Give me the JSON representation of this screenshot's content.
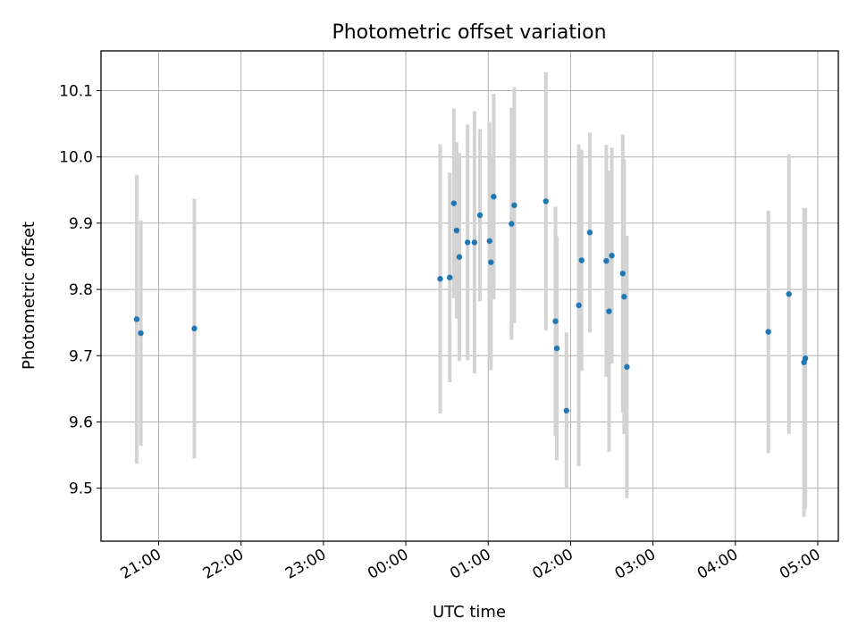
{
  "chart_data": {
    "type": "scatter",
    "title": "Photometric offset variation",
    "xlabel": "UTC time",
    "ylabel": "Photometric offset",
    "x_unit": "UTC time (hours; after 23:59 the clock wraps to 00:00)",
    "xlim": [
      "20:18",
      "05:15"
    ],
    "ylim": [
      9.42,
      10.16
    ],
    "grid": true,
    "x_ticks": [
      "21:00",
      "22:00",
      "23:00",
      "00:00",
      "01:00",
      "02:00",
      "03:00",
      "04:00",
      "05:00"
    ],
    "y_ticks": [
      "9.5",
      "9.6",
      "9.7",
      "9.8",
      "9.9",
      "10.0",
      "10.1"
    ],
    "colors": {
      "marker": "#1f77b4",
      "errorbar": "#d3d3d3",
      "grid": "#b0b0b0"
    },
    "points": [
      {
        "x": "20:44",
        "y": 9.755,
        "yerr": 0.218
      },
      {
        "x": "20:47",
        "y": 9.734,
        "yerr": 0.17
      },
      {
        "x": "21:26",
        "y": 9.741,
        "yerr": 0.196
      },
      {
        "x": "00:25",
        "y": 9.816,
        "yerr": 0.203
      },
      {
        "x": "00:32",
        "y": 9.818,
        "yerr": 0.158
      },
      {
        "x": "00:35",
        "y": 9.93,
        "yerr": 0.143
      },
      {
        "x": "00:37",
        "y": 9.889,
        "yerr": 0.133
      },
      {
        "x": "00:39",
        "y": 9.849,
        "yerr": 0.157
      },
      {
        "x": "00:45",
        "y": 9.871,
        "yerr": 0.178
      },
      {
        "x": "00:50",
        "y": 9.871,
        "yerr": 0.198
      },
      {
        "x": "00:54",
        "y": 9.912,
        "yerr": 0.13
      },
      {
        "x": "01:01",
        "y": 9.873,
        "yerr": 0.18
      },
      {
        "x": "01:02",
        "y": 9.841,
        "yerr": 0.163
      },
      {
        "x": "01:04",
        "y": 9.94,
        "yerr": 0.155
      },
      {
        "x": "01:17",
        "y": 9.899,
        "yerr": 0.175
      },
      {
        "x": "01:19",
        "y": 9.927,
        "yerr": 0.178
      },
      {
        "x": "01:42",
        "y": 9.933,
        "yerr": 0.195
      },
      {
        "x": "01:49",
        "y": 9.752,
        "yerr": 0.173
      },
      {
        "x": "01:50",
        "y": 9.711,
        "yerr": 0.169
      },
      {
        "x": "01:57",
        "y": 9.617,
        "yerr": 0.118
      },
      {
        "x": "02:06",
        "y": 9.776,
        "yerr": 0.243
      },
      {
        "x": "02:08",
        "y": 9.844,
        "yerr": 0.167
      },
      {
        "x": "02:14",
        "y": 9.886,
        "yerr": 0.151
      },
      {
        "x": "02:26",
        "y": 9.843,
        "yerr": 0.175
      },
      {
        "x": "02:28",
        "y": 9.767,
        "yerr": 0.212
      },
      {
        "x": "02:30",
        "y": 9.851,
        "yerr": 0.163
      },
      {
        "x": "02:38",
        "y": 9.824,
        "yerr": 0.21
      },
      {
        "x": "02:39",
        "y": 9.789,
        "yerr": 0.207
      },
      {
        "x": "02:41",
        "y": 9.683,
        "yerr": 0.198
      },
      {
        "x": "04:24",
        "y": 9.736,
        "yerr": 0.183
      },
      {
        "x": "04:39",
        "y": 9.793,
        "yerr": 0.211
      },
      {
        "x": "04:50",
        "y": 9.69,
        "yerr": 0.233
      },
      {
        "x": "04:51",
        "y": 9.696,
        "yerr": 0.227
      }
    ]
  }
}
